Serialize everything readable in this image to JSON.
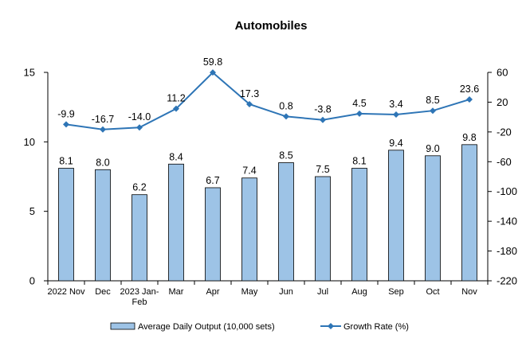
{
  "chart_data": {
    "type": "bar",
    "title": "Automobiles",
    "categories": [
      "2022 Nov",
      "Dec",
      "2023 Jan-Feb",
      "Mar",
      "Apr",
      "May",
      "Jun",
      "Jul",
      "Aug",
      "Sep",
      "Oct",
      "Nov"
    ],
    "series": [
      {
        "name": "Average Daily Output (10,000 sets)",
        "type": "bar",
        "axis": "left",
        "values": [
          8.1,
          8.0,
          6.2,
          8.4,
          6.7,
          7.4,
          8.5,
          7.5,
          8.1,
          9.4,
          9.0,
          9.8
        ],
        "labels": [
          "8.1",
          "8.0",
          "6.2",
          "8.4",
          "6.7",
          "7.4",
          "8.5",
          "7.5",
          "8.1",
          "9.4",
          "9.0",
          "9.8"
        ],
        "color": "#9dc3e6",
        "stroke": "#000000"
      },
      {
        "name": "Growth Rate (%)",
        "type": "line",
        "axis": "right",
        "values": [
          -9.9,
          -16.7,
          -14.0,
          11.2,
          59.8,
          17.3,
          0.8,
          -3.8,
          4.5,
          3.4,
          8.5,
          23.6
        ],
        "labels": [
          "-9.9",
          "-16.7",
          "-14.0",
          "11.2",
          "59.8",
          "17.3",
          "0.8",
          "-3.8",
          "4.5",
          "3.4",
          "8.5",
          "23.6"
        ],
        "color": "#2e75b6"
      }
    ],
    "y_left": {
      "lim": [
        0,
        15
      ],
      "ticks": [
        0,
        5,
        10,
        15
      ]
    },
    "y_right": {
      "lim": [
        -220,
        60
      ],
      "ticks": [
        -220,
        -180,
        -140,
        -100,
        -60,
        -20,
        20,
        60
      ]
    },
    "grid": false,
    "legend": "bottom"
  }
}
